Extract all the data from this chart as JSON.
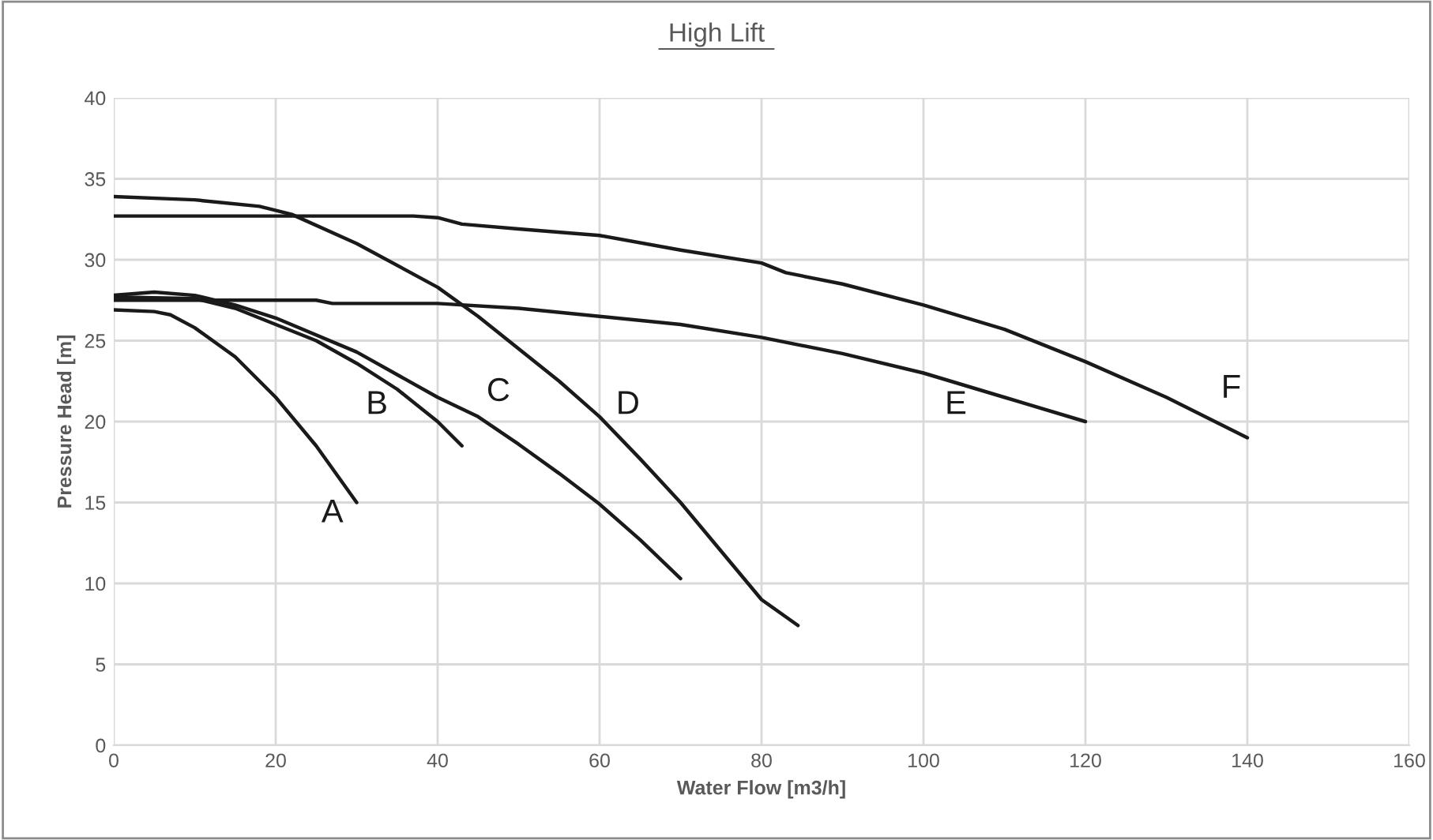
{
  "chart_data": {
    "type": "line",
    "title": "High Lift",
    "xlabel": "Water Flow [m3/h]",
    "ylabel": "Pressure Head [m]",
    "xlim": [
      0,
      160
    ],
    "xticks": [
      0,
      20,
      40,
      60,
      80,
      100,
      120,
      140,
      160
    ],
    "ylim": [
      0,
      40
    ],
    "yticks": [
      0,
      5,
      10,
      15,
      20,
      25,
      30,
      35,
      40
    ],
    "grid": true,
    "marker": "none",
    "line_style": "solid",
    "series": [
      {
        "name": "A",
        "color": "#1a1a1a",
        "x": [
          0,
          5,
          7,
          10,
          15,
          20,
          25,
          30
        ],
        "values": [
          26.9,
          26.8,
          26.6,
          25.8,
          24,
          21.5,
          18.5,
          15
        ]
      },
      {
        "name": "B",
        "color": "#1a1a1a",
        "x": [
          0,
          10,
          15,
          20,
          25,
          30,
          35,
          40,
          43
        ],
        "values": [
          27.7,
          27.6,
          27,
          26,
          25,
          23.6,
          22,
          20,
          18.5
        ]
      },
      {
        "name": "C",
        "color": "#1a1a1a",
        "x": [
          0,
          5,
          10,
          15,
          20,
          30,
          40,
          45,
          50,
          55,
          60,
          65,
          70
        ],
        "values": [
          27.8,
          28,
          27.8,
          27.2,
          26.4,
          24.3,
          21.5,
          20.3,
          18.6,
          16.8,
          14.9,
          12.7,
          10.3
        ]
      },
      {
        "name": "D",
        "color": "#1a1a1a",
        "x": [
          0,
          10,
          18,
          22,
          30,
          40,
          45,
          50,
          55,
          60,
          65,
          70,
          75,
          80,
          84.5
        ],
        "values": [
          33.9,
          33.7,
          33.3,
          32.8,
          31,
          28.3,
          26.5,
          24.5,
          22.5,
          20.3,
          17.7,
          15,
          12,
          9,
          7.4
        ]
      },
      {
        "name": "E",
        "color": "#1a1a1a",
        "x": [
          0,
          10,
          20,
          25,
          27,
          35,
          40,
          50,
          60,
          70,
          80,
          90,
          100,
          110,
          120
        ],
        "values": [
          27.5,
          27.5,
          27.5,
          27.5,
          27.3,
          27.3,
          27.3,
          27,
          26.5,
          26,
          25.2,
          24.2,
          23,
          21.5,
          20
        ]
      },
      {
        "name": "F",
        "color": "#1a1a1a",
        "x": [
          0,
          20,
          30,
          37,
          40,
          43,
          50,
          60,
          70,
          80,
          83,
          90,
          100,
          110,
          120,
          130,
          140
        ],
        "values": [
          32.7,
          32.7,
          32.7,
          32.7,
          32.6,
          32.2,
          31.9,
          31.5,
          30.6,
          29.8,
          29.2,
          28.5,
          27.2,
          25.7,
          23.7,
          21.5,
          19
        ]
      }
    ]
  }
}
